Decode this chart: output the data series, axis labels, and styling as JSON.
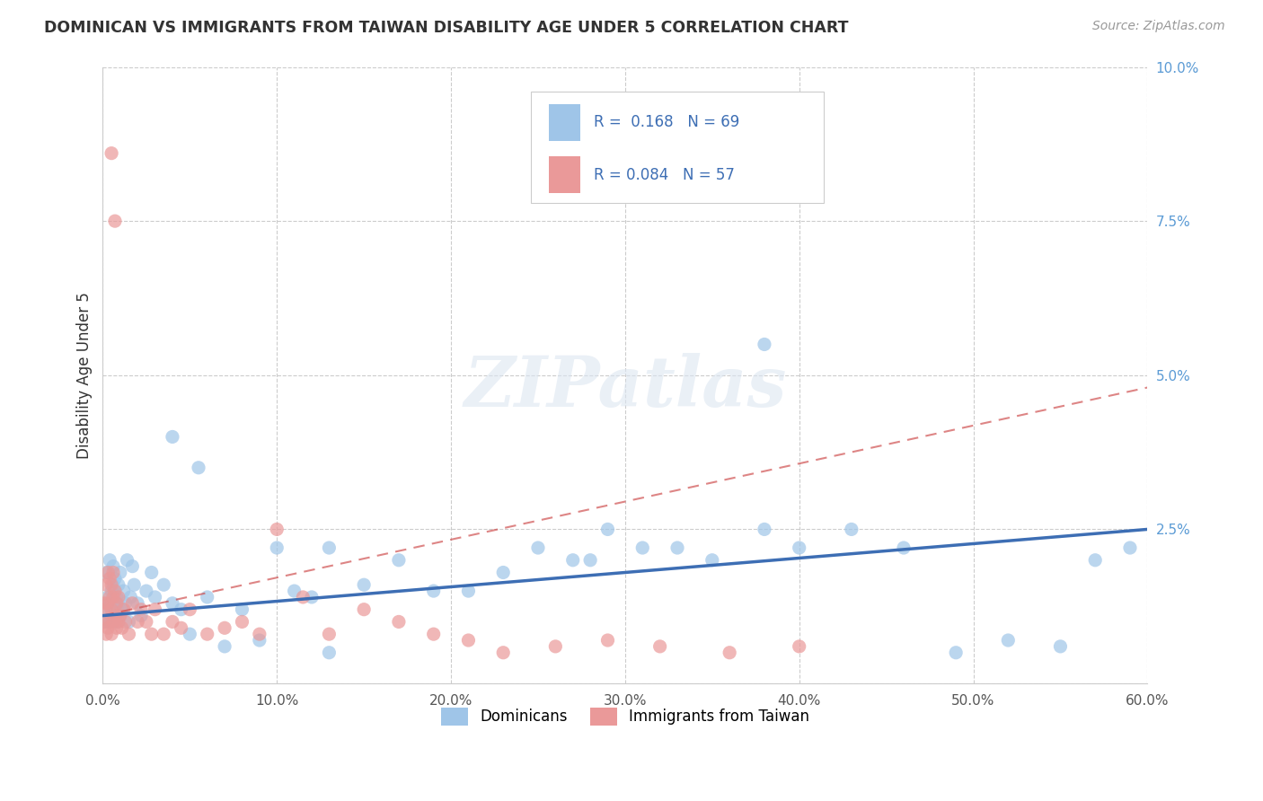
{
  "title": "DOMINICAN VS IMMIGRANTS FROM TAIWAN DISABILITY AGE UNDER 5 CORRELATION CHART",
  "source": "Source: ZipAtlas.com",
  "ylabel": "Disability Age Under 5",
  "xlim": [
    0.0,
    0.6
  ],
  "ylim": [
    0.0,
    0.1
  ],
  "xticks": [
    0.0,
    0.1,
    0.2,
    0.3,
    0.4,
    0.5,
    0.6
  ],
  "xtick_labels": [
    "0.0%",
    "10.0%",
    "20.0%",
    "30.0%",
    "40.0%",
    "50.0%",
    "60.0%"
  ],
  "yticks_right": [
    0.0,
    0.025,
    0.05,
    0.075,
    0.1
  ],
  "ytick_labels_right": [
    "",
    "2.5%",
    "5.0%",
    "7.5%",
    "10.0%"
  ],
  "blue_color": "#9fc5e8",
  "pink_color": "#ea9999",
  "blue_line_color": "#3d6eb4",
  "pink_line_color": "#cc4444",
  "blue_R": 0.168,
  "blue_N": 69,
  "pink_R": 0.084,
  "pink_N": 57,
  "blue_line_x0": 0.0,
  "blue_line_y0": 0.011,
  "blue_line_x1": 0.6,
  "blue_line_y1": 0.025,
  "pink_line_x0": 0.0,
  "pink_line_y0": 0.011,
  "pink_line_x1": 0.6,
  "pink_line_y1": 0.048,
  "dominicans_x": [
    0.001,
    0.002,
    0.002,
    0.003,
    0.003,
    0.004,
    0.004,
    0.005,
    0.005,
    0.006,
    0.006,
    0.007,
    0.007,
    0.008,
    0.008,
    0.009,
    0.009,
    0.01,
    0.01,
    0.011,
    0.012,
    0.013,
    0.014,
    0.015,
    0.016,
    0.017,
    0.018,
    0.02,
    0.022,
    0.025,
    0.028,
    0.03,
    0.035,
    0.04,
    0.045,
    0.05,
    0.055,
    0.06,
    0.07,
    0.08,
    0.09,
    0.1,
    0.11,
    0.12,
    0.13,
    0.15,
    0.17,
    0.19,
    0.21,
    0.23,
    0.25,
    0.27,
    0.29,
    0.31,
    0.33,
    0.35,
    0.38,
    0.4,
    0.43,
    0.46,
    0.49,
    0.52,
    0.55,
    0.57,
    0.59,
    0.04,
    0.13,
    0.28,
    0.38
  ],
  "dominicans_y": [
    0.01,
    0.012,
    0.018,
    0.01,
    0.014,
    0.013,
    0.02,
    0.011,
    0.015,
    0.016,
    0.019,
    0.012,
    0.017,
    0.01,
    0.014,
    0.013,
    0.016,
    0.011,
    0.018,
    0.012,
    0.015,
    0.013,
    0.02,
    0.01,
    0.014,
    0.019,
    0.016,
    0.013,
    0.011,
    0.015,
    0.018,
    0.014,
    0.016,
    0.04,
    0.012,
    0.008,
    0.035,
    0.014,
    0.006,
    0.012,
    0.007,
    0.022,
    0.015,
    0.014,
    0.022,
    0.016,
    0.02,
    0.015,
    0.015,
    0.018,
    0.022,
    0.02,
    0.025,
    0.022,
    0.022,
    0.02,
    0.025,
    0.022,
    0.025,
    0.022,
    0.005,
    0.007,
    0.006,
    0.02,
    0.022,
    0.013,
    0.005,
    0.02,
    0.055
  ],
  "taiwan_x": [
    0.001,
    0.001,
    0.002,
    0.002,
    0.002,
    0.003,
    0.003,
    0.003,
    0.004,
    0.004,
    0.004,
    0.005,
    0.005,
    0.005,
    0.006,
    0.006,
    0.006,
    0.007,
    0.007,
    0.008,
    0.008,
    0.009,
    0.009,
    0.01,
    0.011,
    0.012,
    0.013,
    0.015,
    0.017,
    0.02,
    0.022,
    0.025,
    0.028,
    0.03,
    0.035,
    0.04,
    0.045,
    0.05,
    0.06,
    0.07,
    0.08,
    0.09,
    0.1,
    0.115,
    0.13,
    0.15,
    0.17,
    0.19,
    0.21,
    0.23,
    0.26,
    0.29,
    0.32,
    0.36,
    0.4,
    0.005,
    0.007
  ],
  "taiwan_y": [
    0.01,
    0.013,
    0.008,
    0.012,
    0.016,
    0.009,
    0.013,
    0.018,
    0.01,
    0.014,
    0.017,
    0.008,
    0.012,
    0.016,
    0.01,
    0.014,
    0.018,
    0.011,
    0.015,
    0.009,
    0.013,
    0.01,
    0.014,
    0.011,
    0.009,
    0.012,
    0.01,
    0.008,
    0.013,
    0.01,
    0.012,
    0.01,
    0.008,
    0.012,
    0.008,
    0.01,
    0.009,
    0.012,
    0.008,
    0.009,
    0.01,
    0.008,
    0.025,
    0.014,
    0.008,
    0.012,
    0.01,
    0.008,
    0.007,
    0.005,
    0.006,
    0.007,
    0.006,
    0.005,
    0.006,
    0.086,
    0.075
  ]
}
